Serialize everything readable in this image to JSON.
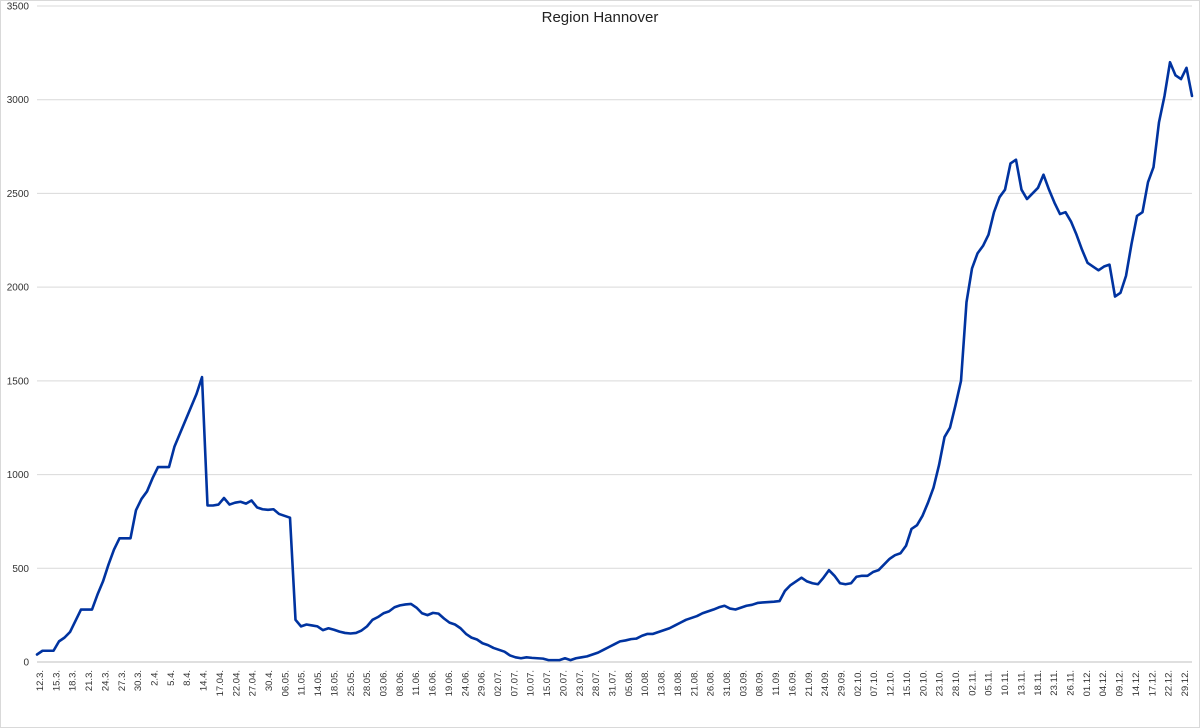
{
  "chart_data": {
    "type": "line",
    "title": "Region Hannover",
    "xlabel": "",
    "ylabel": "",
    "ylim": [
      0,
      3500
    ],
    "yticks": [
      0,
      500,
      1000,
      1500,
      2000,
      2500,
      3000,
      3500
    ],
    "grid": true,
    "legend": "none",
    "line_color": "#0033a0",
    "x_tick_labels": [
      "12.3.",
      "15.3.",
      "18.3.",
      "21.3.",
      "24.3.",
      "27.3.",
      "30.3.",
      "2.4.",
      "5.4.",
      "8.4.",
      "14.4.",
      "17.04.",
      "22.04.",
      "27.04.",
      "30.4.",
      "06.05.",
      "11.05.",
      "14.05.",
      "18.05.",
      "25.05.",
      "28.05.",
      "03.06.",
      "08.06.",
      "11.06.",
      "16.06.",
      "19.06.",
      "24.06.",
      "29.06.",
      "02.07.",
      "07.07.",
      "10.07.",
      "15.07.",
      "20.07.",
      "23.07.",
      "28.07.",
      "31.07.",
      "05.08.",
      "10.08.",
      "13.08.",
      "18.08.",
      "21.08.",
      "26.08.",
      "31.08.",
      "03.09.",
      "08.09.",
      "11.09.",
      "16.09.",
      "21.09.",
      "24.09.",
      "29.09.",
      "02.10.",
      "07.10.",
      "12.10.",
      "15.10.",
      "20.10.",
      "23.10.",
      "28.10.",
      "02.11.",
      "05.11.",
      "10.11.",
      "13.11.",
      "18.11.",
      "23.11.",
      "26.11.",
      "01.12.",
      "04.12.",
      "09.12.",
      "14.12.",
      "17.12.",
      "22.12.",
      "29.12."
    ],
    "series": [
      {
        "values": [
          40,
          60,
          60,
          60,
          110,
          130,
          160,
          220,
          280,
          280,
          280,
          360,
          430,
          520,
          600,
          660,
          660,
          660,
          810,
          870,
          910,
          980,
          1040,
          1040,
          1040,
          1150,
          1220,
          1290,
          1360,
          1430,
          1520,
          835,
          835,
          840,
          875,
          840,
          850,
          855,
          845,
          862,
          825,
          815,
          812,
          815,
          790,
          780,
          770,
          225,
          190,
          200,
          195,
          190,
          170,
          180,
          172,
          162,
          155,
          152,
          155,
          168,
          190,
          225,
          240,
          260,
          270,
          292,
          302,
          307,
          310,
          290,
          260,
          250,
          262,
          258,
          232,
          210,
          200,
          180,
          150,
          130,
          120,
          100,
          90,
          75,
          65,
          55,
          35,
          25,
          20,
          25,
          22,
          20,
          18,
          10,
          10,
          10,
          20,
          10,
          20,
          25,
          30,
          40,
          50,
          65,
          80,
          95,
          110,
          115,
          122,
          125,
          140,
          150,
          150,
          160,
          170,
          180,
          195,
          210,
          225,
          235,
          245,
          260,
          270,
          280,
          292,
          300,
          285,
          280,
          290,
          300,
          305,
          315,
          318,
          320,
          322,
          325,
          380,
          410,
          430,
          450,
          430,
          420,
          415,
          450,
          490,
          460,
          420,
          415,
          420,
          455,
          460,
          460,
          480,
          490,
          520,
          550,
          570,
          580,
          620,
          710,
          730,
          780,
          850,
          930,
          1050,
          1200,
          1250,
          1370,
          1500,
          1920,
          2100,
          2180,
          2220,
          2280,
          2400,
          2480,
          2520,
          2660,
          2680,
          2520,
          2470,
          2500,
          2530,
          2600,
          2520,
          2450,
          2390,
          2400,
          2350,
          2280,
          2200,
          2130,
          2110,
          2090,
          2110,
          2120,
          1950,
          1970,
          2060,
          2230,
          2380,
          2400,
          2560,
          2640,
          2880,
          3020,
          3200,
          3130,
          3110,
          3170,
          3020
        ]
      }
    ]
  }
}
